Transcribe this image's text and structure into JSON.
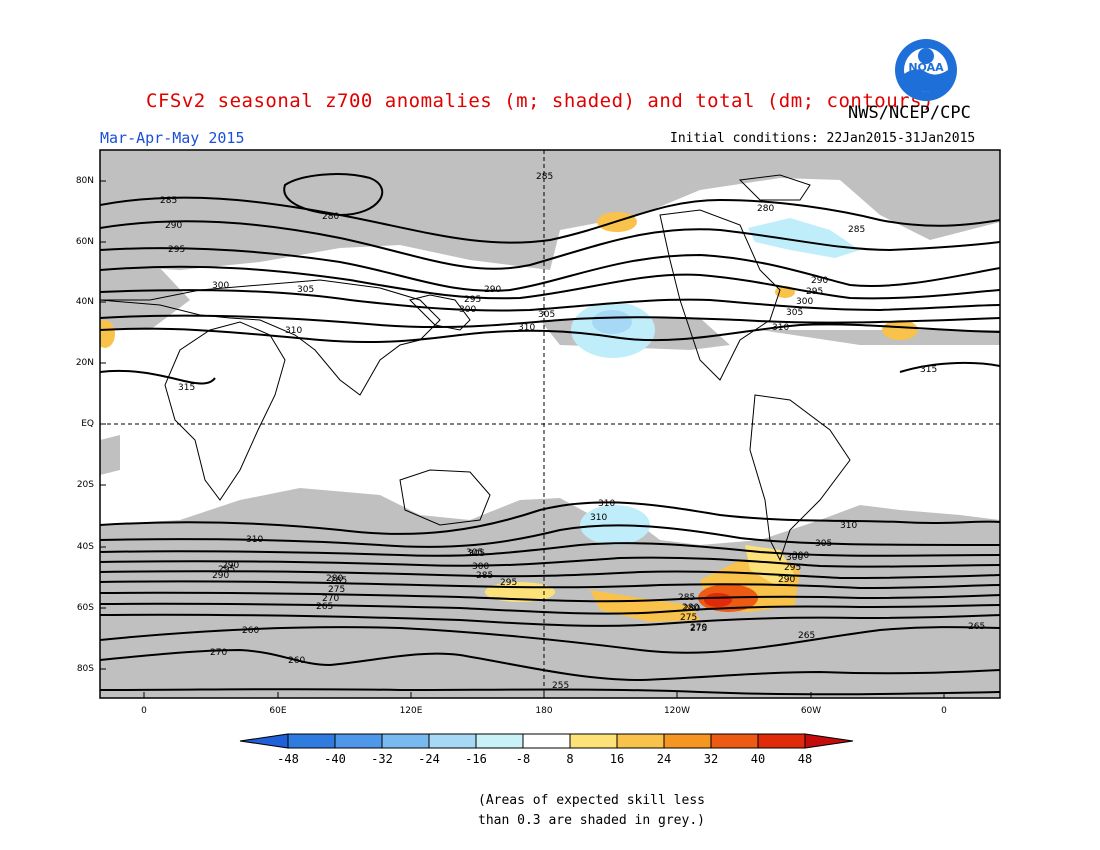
{
  "header": {
    "title": "CFSv2 seasonal z700 anomalies (m; shaded) and total (dm; contours)",
    "agency": "NWS/NCEP/CPC",
    "season": "Mar-Apr-May 2015",
    "initial_conditions": "Initial conditions: 22Jan2015-31Jan2015",
    "logo_text": "NOAA"
  },
  "map": {
    "lat_labels": [
      "80N",
      "60N",
      "40N",
      "20N",
      "EQ",
      "20S",
      "40S",
      "60S",
      "80S"
    ],
    "lon_labels": [
      "0",
      "60E",
      "120E",
      "180",
      "120W",
      "60W",
      "0"
    ],
    "contour_labels": [
      "285",
      "280",
      "290",
      "295",
      "300",
      "305",
      "310",
      "315",
      "285",
      "290",
      "295",
      "300",
      "305",
      "310",
      "280",
      "285",
      "290",
      "295",
      "300",
      "305",
      "310",
      "315",
      "310",
      "310",
      "305",
      "300",
      "295",
      "290",
      "285",
      "280",
      "275",
      "270",
      "265",
      "310",
      "305",
      "300",
      "295",
      "290",
      "285",
      "280",
      "275",
      "270",
      "265",
      "260",
      "255",
      "310",
      "305",
      "300",
      "295",
      "290",
      "285",
      "280",
      "275",
      "270",
      "265",
      "260"
    ]
  },
  "colorbar": {
    "labels": [
      "-48",
      "-40",
      "-32",
      "-24",
      "-16",
      "-8",
      "8",
      "16",
      "24",
      "32",
      "40",
      "48"
    ],
    "colors": [
      "#1f5fd8",
      "#2f7be0",
      "#4f97e8",
      "#7ab8f0",
      "#a7d9f7",
      "#c8f2f8",
      "#ffffff",
      "#fde27a",
      "#f9c24a",
      "#f59623",
      "#ed5a13",
      "#e02a0a",
      "#c40c0c"
    ]
  },
  "skill_note": {
    "line1": "(Areas of expected skill less",
    "line2": "than 0.3 are shaded in grey.)"
  }
}
